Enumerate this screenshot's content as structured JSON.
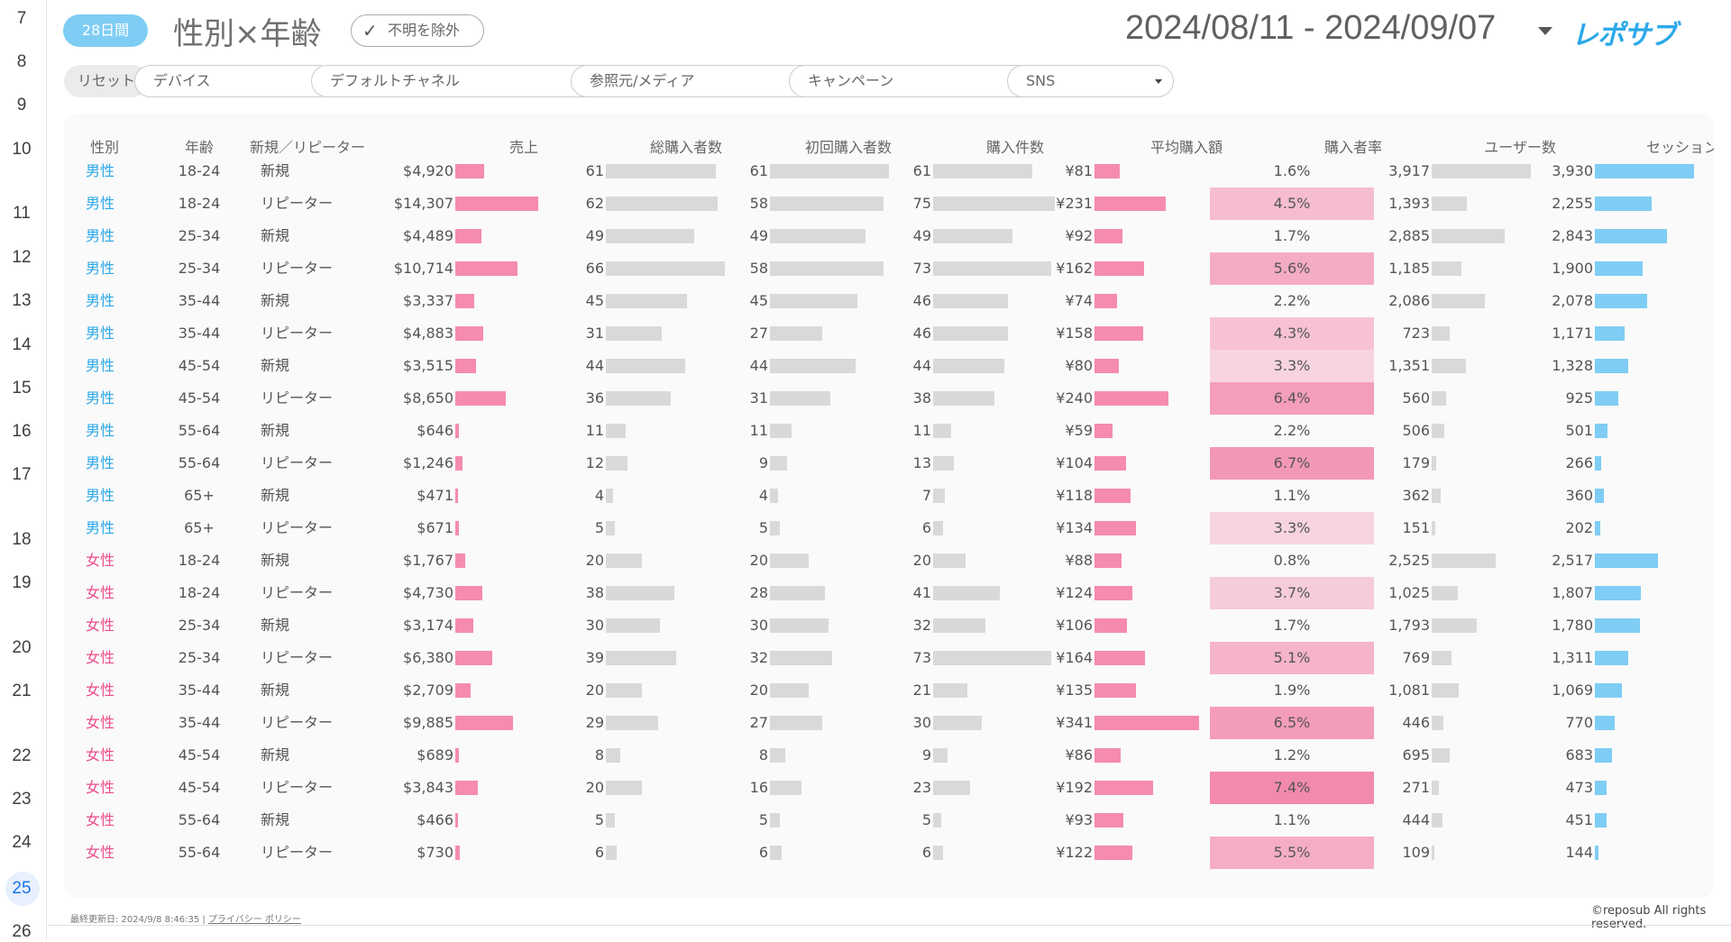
{
  "gutter": {
    "line_numbers": [
      "7",
      "8",
      "9",
      "10",
      "11",
      "12",
      "13",
      "14",
      "15",
      "16",
      "17",
      "18",
      "19",
      "20",
      "21",
      "22",
      "23",
      "24",
      "25",
      "26"
    ],
    "active": "25"
  },
  "header": {
    "period_pill": "28日間",
    "title": "性別×年齢",
    "exclude_unknown": "不明を除外",
    "date_range": "2024/08/11 - 2024/09/07",
    "logo_text": "レポサブ"
  },
  "filters": {
    "reset": "リセット",
    "device": "デバイス",
    "channel": "デフォルトチャネル",
    "source_medium": "参照元/メディア",
    "campaign": "キャンペーン",
    "sns": "SNS"
  },
  "table": {
    "columns": [
      "性別",
      "年齢",
      "新規／リピーター",
      "売上",
      "総購入者数",
      "初回購入者数",
      "購入件数",
      "平均購入額",
      "購入者率",
      "ユーザー数",
      "セッション"
    ],
    "max": {
      "sales": 14307,
      "buyers": 66,
      "first": 61,
      "purchases": 75,
      "avg": 341,
      "users": 3917,
      "sessions": 3930,
      "rate": 7.4
    },
    "rows": [
      {
        "gender": "男性",
        "g": "m",
        "age": "18-24",
        "type": "新規",
        "sales": "$4,920",
        "sales_v": 4920,
        "buyers": "61",
        "buyers_v": 61,
        "first": "61",
        "first_v": 61,
        "purchases": "61",
        "purchases_v": 61,
        "avg": "¥81",
        "avg_v": 81,
        "rate": "1.6%",
        "rate_v": 1.6,
        "users": "3,917",
        "users_v": 3917,
        "sessions": "3,930",
        "sessions_v": 3930
      },
      {
        "gender": "男性",
        "g": "m",
        "age": "18-24",
        "type": "リピーター",
        "sales": "$14,307",
        "sales_v": 14307,
        "buyers": "62",
        "buyers_v": 62,
        "first": "58",
        "first_v": 58,
        "purchases": "75",
        "purchases_v": 75,
        "avg": "¥231",
        "avg_v": 231,
        "rate": "4.5%",
        "rate_v": 4.5,
        "users": "1,393",
        "users_v": 1393,
        "sessions": "2,255",
        "sessions_v": 2255
      },
      {
        "gender": "男性",
        "g": "m",
        "age": "25-34",
        "type": "新規",
        "sales": "$4,489",
        "sales_v": 4489,
        "buyers": "49",
        "buyers_v": 49,
        "first": "49",
        "first_v": 49,
        "purchases": "49",
        "purchases_v": 49,
        "avg": "¥92",
        "avg_v": 92,
        "rate": "1.7%",
        "rate_v": 1.7,
        "users": "2,885",
        "users_v": 2885,
        "sessions": "2,843",
        "sessions_v": 2843
      },
      {
        "gender": "男性",
        "g": "m",
        "age": "25-34",
        "type": "リピーター",
        "sales": "$10,714",
        "sales_v": 10714,
        "buyers": "66",
        "buyers_v": 66,
        "first": "58",
        "first_v": 58,
        "purchases": "73",
        "purchases_v": 73,
        "avg": "¥162",
        "avg_v": 162,
        "rate": "5.6%",
        "rate_v": 5.6,
        "users": "1,185",
        "users_v": 1185,
        "sessions": "1,900",
        "sessions_v": 1900
      },
      {
        "gender": "男性",
        "g": "m",
        "age": "35-44",
        "type": "新規",
        "sales": "$3,337",
        "sales_v": 3337,
        "buyers": "45",
        "buyers_v": 45,
        "first": "45",
        "first_v": 45,
        "purchases": "46",
        "purchases_v": 46,
        "avg": "¥74",
        "avg_v": 74,
        "rate": "2.2%",
        "rate_v": 2.2,
        "users": "2,086",
        "users_v": 2086,
        "sessions": "2,078",
        "sessions_v": 2078
      },
      {
        "gender": "男性",
        "g": "m",
        "age": "35-44",
        "type": "リピーター",
        "sales": "$4,883",
        "sales_v": 4883,
        "buyers": "31",
        "buyers_v": 31,
        "first": "27",
        "first_v": 27,
        "purchases": "46",
        "purchases_v": 46,
        "avg": "¥158",
        "avg_v": 158,
        "rate": "4.3%",
        "rate_v": 4.3,
        "users": "723",
        "users_v": 723,
        "sessions": "1,171",
        "sessions_v": 1171
      },
      {
        "gender": "男性",
        "g": "m",
        "age": "45-54",
        "type": "新規",
        "sales": "$3,515",
        "sales_v": 3515,
        "buyers": "44",
        "buyers_v": 44,
        "first": "44",
        "first_v": 44,
        "purchases": "44",
        "purchases_v": 44,
        "avg": "¥80",
        "avg_v": 80,
        "rate": "3.3%",
        "rate_v": 3.3,
        "users": "1,351",
        "users_v": 1351,
        "sessions": "1,328",
        "sessions_v": 1328
      },
      {
        "gender": "男性",
        "g": "m",
        "age": "45-54",
        "type": "リピーター",
        "sales": "$8,650",
        "sales_v": 8650,
        "buyers": "36",
        "buyers_v": 36,
        "first": "31",
        "first_v": 31,
        "purchases": "38",
        "purchases_v": 38,
        "avg": "¥240",
        "avg_v": 240,
        "rate": "6.4%",
        "rate_v": 6.4,
        "users": "560",
        "users_v": 560,
        "sessions": "925",
        "sessions_v": 925
      },
      {
        "gender": "男性",
        "g": "m",
        "age": "55-64",
        "type": "新規",
        "sales": "$646",
        "sales_v": 646,
        "buyers": "11",
        "buyers_v": 11,
        "first": "11",
        "first_v": 11,
        "purchases": "11",
        "purchases_v": 11,
        "avg": "¥59",
        "avg_v": 59,
        "rate": "2.2%",
        "rate_v": 2.2,
        "users": "506",
        "users_v": 506,
        "sessions": "501",
        "sessions_v": 501
      },
      {
        "gender": "男性",
        "g": "m",
        "age": "55-64",
        "type": "リピーター",
        "sales": "$1,246",
        "sales_v": 1246,
        "buyers": "12",
        "buyers_v": 12,
        "first": "9",
        "first_v": 9,
        "purchases": "13",
        "purchases_v": 13,
        "avg": "¥104",
        "avg_v": 104,
        "rate": "6.7%",
        "rate_v": 6.7,
        "users": "179",
        "users_v": 179,
        "sessions": "266",
        "sessions_v": 266
      },
      {
        "gender": "男性",
        "g": "m",
        "age": "65+",
        "type": "新規",
        "sales": "$471",
        "sales_v": 471,
        "buyers": "4",
        "buyers_v": 4,
        "first": "4",
        "first_v": 4,
        "purchases": "7",
        "purchases_v": 7,
        "avg": "¥118",
        "avg_v": 118,
        "rate": "1.1%",
        "rate_v": 1.1,
        "users": "362",
        "users_v": 362,
        "sessions": "360",
        "sessions_v": 360
      },
      {
        "gender": "男性",
        "g": "m",
        "age": "65+",
        "type": "リピーター",
        "sales": "$671",
        "sales_v": 671,
        "buyers": "5",
        "buyers_v": 5,
        "first": "5",
        "first_v": 5,
        "purchases": "6",
        "purchases_v": 6,
        "avg": "¥134",
        "avg_v": 134,
        "rate": "3.3%",
        "rate_v": 3.3,
        "users": "151",
        "users_v": 151,
        "sessions": "202",
        "sessions_v": 202
      },
      {
        "gender": "女性",
        "g": "f",
        "age": "18-24",
        "type": "新規",
        "sales": "$1,767",
        "sales_v": 1767,
        "buyers": "20",
        "buyers_v": 20,
        "first": "20",
        "first_v": 20,
        "purchases": "20",
        "purchases_v": 20,
        "avg": "¥88",
        "avg_v": 88,
        "rate": "0.8%",
        "rate_v": 0.8,
        "users": "2,525",
        "users_v": 2525,
        "sessions": "2,517",
        "sessions_v": 2517
      },
      {
        "gender": "女性",
        "g": "f",
        "age": "18-24",
        "type": "リピーター",
        "sales": "$4,730",
        "sales_v": 4730,
        "buyers": "38",
        "buyers_v": 38,
        "first": "28",
        "first_v": 28,
        "purchases": "41",
        "purchases_v": 41,
        "avg": "¥124",
        "avg_v": 124,
        "rate": "3.7%",
        "rate_v": 3.7,
        "users": "1,025",
        "users_v": 1025,
        "sessions": "1,807",
        "sessions_v": 1807
      },
      {
        "gender": "女性",
        "g": "f",
        "age": "25-34",
        "type": "新規",
        "sales": "$3,174",
        "sales_v": 3174,
        "buyers": "30",
        "buyers_v": 30,
        "first": "30",
        "first_v": 30,
        "purchases": "32",
        "purchases_v": 32,
        "avg": "¥106",
        "avg_v": 106,
        "rate": "1.7%",
        "rate_v": 1.7,
        "users": "1,793",
        "users_v": 1793,
        "sessions": "1,780",
        "sessions_v": 1780
      },
      {
        "gender": "女性",
        "g": "f",
        "age": "25-34",
        "type": "リピーター",
        "sales": "$6,380",
        "sales_v": 6380,
        "buyers": "39",
        "buyers_v": 39,
        "first": "32",
        "first_v": 32,
        "purchases": "73",
        "purchases_v": 73,
        "avg": "¥164",
        "avg_v": 164,
        "rate": "5.1%",
        "rate_v": 5.1,
        "users": "769",
        "users_v": 769,
        "sessions": "1,311",
        "sessions_v": 1311
      },
      {
        "gender": "女性",
        "g": "f",
        "age": "35-44",
        "type": "新規",
        "sales": "$2,709",
        "sales_v": 2709,
        "buyers": "20",
        "buyers_v": 20,
        "first": "20",
        "first_v": 20,
        "purchases": "21",
        "purchases_v": 21,
        "avg": "¥135",
        "avg_v": 135,
        "rate": "1.9%",
        "rate_v": 1.9,
        "users": "1,081",
        "users_v": 1081,
        "sessions": "1,069",
        "sessions_v": 1069
      },
      {
        "gender": "女性",
        "g": "f",
        "age": "35-44",
        "type": "リピーター",
        "sales": "$9,885",
        "sales_v": 9885,
        "buyers": "29",
        "buyers_v": 29,
        "first": "27",
        "first_v": 27,
        "purchases": "30",
        "purchases_v": 30,
        "avg": "¥341",
        "avg_v": 341,
        "rate": "6.5%",
        "rate_v": 6.5,
        "users": "446",
        "users_v": 446,
        "sessions": "770",
        "sessions_v": 770
      },
      {
        "gender": "女性",
        "g": "f",
        "age": "45-54",
        "type": "新規",
        "sales": "$689",
        "sales_v": 689,
        "buyers": "8",
        "buyers_v": 8,
        "first": "8",
        "first_v": 8,
        "purchases": "9",
        "purchases_v": 9,
        "avg": "¥86",
        "avg_v": 86,
        "rate": "1.2%",
        "rate_v": 1.2,
        "users": "695",
        "users_v": 695,
        "sessions": "683",
        "sessions_v": 683
      },
      {
        "gender": "女性",
        "g": "f",
        "age": "45-54",
        "type": "リピーター",
        "sales": "$3,843",
        "sales_v": 3843,
        "buyers": "20",
        "buyers_v": 20,
        "first": "16",
        "first_v": 16,
        "purchases": "23",
        "purchases_v": 23,
        "avg": "¥192",
        "avg_v": 192,
        "rate": "7.4%",
        "rate_v": 7.4,
        "users": "271",
        "users_v": 271,
        "sessions": "473",
        "sessions_v": 473
      },
      {
        "gender": "女性",
        "g": "f",
        "age": "55-64",
        "type": "新規",
        "sales": "$466",
        "sales_v": 466,
        "buyers": "5",
        "buyers_v": 5,
        "first": "5",
        "first_v": 5,
        "purchases": "5",
        "purchases_v": 5,
        "avg": "¥93",
        "avg_v": 93,
        "rate": "1.1%",
        "rate_v": 1.1,
        "users": "444",
        "users_v": 444,
        "sessions": "451",
        "sessions_v": 451
      },
      {
        "gender": "女性",
        "g": "f",
        "age": "55-64",
        "type": "リピーター",
        "sales": "$730",
        "sales_v": 730,
        "buyers": "6",
        "buyers_v": 6,
        "first": "6",
        "first_v": 6,
        "purchases": "6",
        "purchases_v": 6,
        "avg": "¥122",
        "avg_v": 122,
        "rate": "5.5%",
        "rate_v": 5.5,
        "users": "109",
        "users_v": 109,
        "sessions": "144",
        "sessions_v": 144
      }
    ]
  },
  "footer": {
    "last_updated": "最終更新日: 2024/9/8 8:46:35",
    "privacy": "プライバシー ポリシー",
    "copyright": "©reposub All rights reserved."
  },
  "colors": {
    "blue": "#7fcdf4",
    "male": "#2aa8e8",
    "female": "#ee4c8a",
    "pink_bar": "#f58bb1",
    "gray_bar": "#d9d9d9",
    "rate_base": "#f06e9c"
  }
}
